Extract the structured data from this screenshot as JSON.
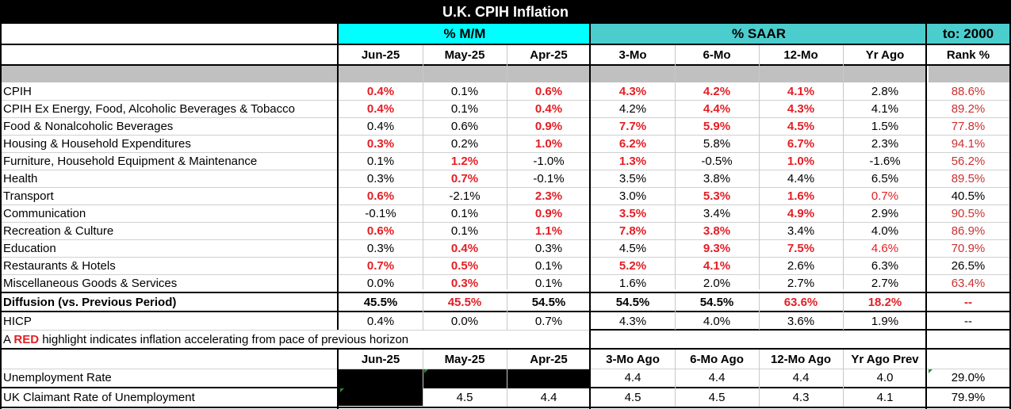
{
  "title": "U.K. CPIH Inflation",
  "groups": {
    "mm": "% M/M",
    "saar": "% SAAR",
    "to2000": "to: 2000"
  },
  "columns": [
    "Jun-25",
    "May-25",
    "Apr-25",
    "3-Mo",
    "6-Mo",
    "12-Mo",
    "Yr Ago",
    "Rank %"
  ],
  "rows": [
    {
      "label": "CPIH",
      "values": [
        "0.4%",
        "0.1%",
        "0.6%",
        "4.3%",
        "4.2%",
        "4.1%",
        "2.8%",
        "88.6%"
      ],
      "red": [
        1,
        0,
        1,
        1,
        1,
        1,
        0,
        1
      ]
    },
    {
      "label": " CPIH Ex Energy, Food, Alcoholic Beverages & Tobacco",
      "values": [
        "0.4%",
        "0.1%",
        "0.4%",
        "4.2%",
        "4.4%",
        "4.3%",
        "4.1%",
        "89.2%"
      ],
      "red": [
        1,
        0,
        1,
        0,
        1,
        1,
        0,
        1
      ]
    },
    {
      "label": "Food & Nonalcoholic Beverages",
      "values": [
        "0.4%",
        "0.6%",
        "0.9%",
        "7.7%",
        "5.9%",
        "4.5%",
        "1.5%",
        "77.8%"
      ],
      "red": [
        0,
        0,
        1,
        1,
        1,
        1,
        0,
        1
      ]
    },
    {
      "label": "Housing & Household Expenditures",
      "values": [
        "0.3%",
        "0.2%",
        "1.0%",
        "6.2%",
        "5.8%",
        "6.7%",
        "2.3%",
        "94.1%"
      ],
      "red": [
        1,
        0,
        1,
        1,
        0,
        1,
        0,
        1
      ]
    },
    {
      "label": "Furniture, Household Equipment & Maintenance",
      "values": [
        "0.1%",
        "1.2%",
        "-1.0%",
        "1.3%",
        "-0.5%",
        "1.0%",
        "-1.6%",
        "56.2%"
      ],
      "red": [
        0,
        1,
        0,
        1,
        0,
        1,
        0,
        1
      ]
    },
    {
      "label": "Health",
      "values": [
        "0.3%",
        "0.7%",
        "-0.1%",
        "3.5%",
        "3.8%",
        "4.4%",
        "6.5%",
        "89.5%"
      ],
      "red": [
        0,
        1,
        0,
        0,
        0,
        0,
        0,
        1
      ]
    },
    {
      "label": "Transport",
      "values": [
        "0.6%",
        "-2.1%",
        "2.3%",
        "3.0%",
        "5.3%",
        "1.6%",
        "0.7%",
        "40.5%"
      ],
      "red": [
        1,
        0,
        1,
        0,
        1,
        1,
        2,
        0
      ]
    },
    {
      "label": "Communication",
      "values": [
        "-0.1%",
        "0.1%",
        "0.9%",
        "3.5%",
        "3.4%",
        "4.9%",
        "2.9%",
        "90.5%"
      ],
      "red": [
        0,
        0,
        1,
        1,
        0,
        1,
        0,
        1
      ]
    },
    {
      "label": "Recreation & Culture",
      "values": [
        "0.6%",
        "0.1%",
        "1.1%",
        "7.8%",
        "3.8%",
        "3.4%",
        "4.0%",
        "86.9%"
      ],
      "red": [
        1,
        0,
        1,
        1,
        1,
        0,
        0,
        1
      ]
    },
    {
      "label": "Education",
      "values": [
        "0.3%",
        "0.4%",
        "0.3%",
        "4.5%",
        "9.3%",
        "7.5%",
        "4.6%",
        "70.9%"
      ],
      "red": [
        0,
        1,
        0,
        0,
        1,
        1,
        2,
        1
      ]
    },
    {
      "label": "Restaurants & Hotels",
      "values": [
        "0.7%",
        "0.5%",
        "0.1%",
        "5.2%",
        "4.1%",
        "2.6%",
        "6.3%",
        "26.5%"
      ],
      "red": [
        1,
        1,
        0,
        1,
        1,
        0,
        0,
        0
      ]
    },
    {
      "label": "Miscellaneous Goods & Services",
      "values": [
        "0.0%",
        "0.3%",
        "0.1%",
        "1.6%",
        "2.0%",
        "2.7%",
        "2.7%",
        "63.4%"
      ],
      "red": [
        0,
        1,
        0,
        0,
        0,
        0,
        0,
        1
      ]
    }
  ],
  "diffusion": {
    "label": "Diffusion (vs. Previous Period)",
    "values": [
      "45.5%",
      "45.5%",
      "54.5%",
      "54.5%",
      "54.5%",
      "63.6%",
      "18.2%",
      "--"
    ],
    "red": [
      0,
      1,
      0,
      0,
      0,
      1,
      1,
      1
    ]
  },
  "hicp": {
    "label": "HICP",
    "values": [
      "0.4%",
      "0.0%",
      "0.7%",
      "4.3%",
      "4.0%",
      "3.6%",
      "1.9%",
      "--"
    ]
  },
  "note": {
    "before": "A ",
    "highlight": "RED",
    "after": " highlight indicates inflation accelerating from pace of previous horizon"
  },
  "columns2": [
    "Jun-25",
    "May-25",
    "Apr-25",
    "3-Mo Ago",
    "6-Mo Ago",
    "12-Mo Ago",
    "Yr Ago Prev"
  ],
  "unemployment": {
    "label": "Unemployment Rate",
    "values": [
      "",
      "",
      "",
      "4.4",
      "4.4",
      "4.4",
      "4.0",
      "29.0%"
    ]
  },
  "claimant": {
    "label": " UK Claimant Rate of Unemployment",
    "values": [
      "",
      "4.5",
      "4.4",
      "4.5",
      "4.5",
      "4.3",
      "4.1",
      "79.9%"
    ]
  },
  "colors": {
    "cyan": "#00ffff",
    "teal": "#4bcdcd",
    "gray": "#c0c0c0",
    "red": "#e31e24",
    "title_bg": "#000000"
  }
}
